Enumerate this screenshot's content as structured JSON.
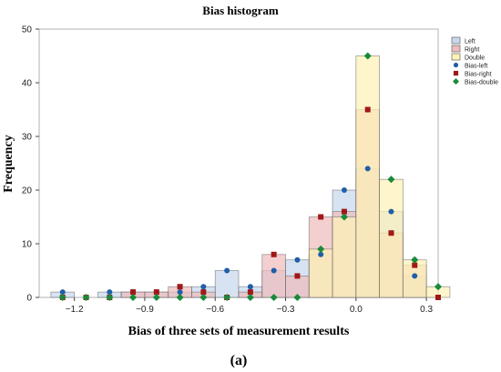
{
  "chart_data": {
    "type": "bar",
    "title": "Bias histogram",
    "xlabel": "Bias of three sets of measurement  results",
    "ylabel": "Frequency",
    "caption": "(a)",
    "bin_width": 0.1,
    "xlim": [
      -1.35,
      0.35
    ],
    "ylim": [
      0,
      50
    ],
    "x_ticks": [
      -1.2,
      -0.9,
      -0.6,
      -0.3,
      0.0,
      0.3
    ],
    "x_tick_labels": [
      "−1.2",
      "−0.9",
      "−0.6",
      "−0.3",
      "0.0",
      "0.3"
    ],
    "y_ticks": [
      0,
      10,
      20,
      30,
      40,
      50
    ],
    "y_tick_labels": [
      "0",
      "10",
      "20",
      "30",
      "40",
      "50"
    ],
    "bin_centers": [
      -1.25,
      -1.15,
      -1.05,
      -0.95,
      -0.85,
      -0.75,
      -0.65,
      -0.55,
      -0.45,
      -0.35,
      -0.25,
      -0.15,
      -0.05,
      0.05,
      0.15,
      0.25,
      0.35
    ],
    "series": [
      {
        "name": "Left",
        "kind": "hist",
        "fill": "#c8d8ee",
        "values": [
          1,
          0,
          1,
          1,
          1,
          1,
          2,
          5,
          2,
          5,
          7,
          8,
          20,
          24,
          16,
          4,
          0
        ]
      },
      {
        "name": "Right",
        "kind": "hist",
        "fill": "#eebcbc",
        "values": [
          0,
          0,
          0,
          1,
          1,
          2,
          1,
          0,
          1,
          8,
          4,
          15,
          16,
          35,
          12,
          6,
          0
        ]
      },
      {
        "name": "Double",
        "kind": "hist",
        "fill": "#fdf3b6",
        "values": [
          0,
          0,
          0,
          0,
          0,
          0,
          0,
          0,
          0,
          0,
          0,
          9,
          15,
          45,
          22,
          7,
          2
        ]
      },
      {
        "name": "Bias-left",
        "kind": "marker",
        "marker": "circle",
        "color": "#1f5fa8",
        "values": [
          1,
          0,
          1,
          1,
          1,
          1,
          2,
          5,
          2,
          5,
          7,
          8,
          20,
          24,
          16,
          4,
          0
        ]
      },
      {
        "name": "Bias-right",
        "kind": "marker",
        "marker": "square",
        "color": "#a01818",
        "values": [
          0,
          0,
          0,
          1,
          1,
          2,
          1,
          0,
          1,
          8,
          4,
          15,
          16,
          35,
          12,
          6,
          0
        ]
      },
      {
        "name": "Bias-double",
        "kind": "marker",
        "marker": "diamond",
        "color": "#1a8a3a",
        "values": [
          0,
          0,
          0,
          0,
          0,
          0,
          0,
          0,
          0,
          0,
          0,
          9,
          15,
          45,
          22,
          7,
          2
        ]
      }
    ],
    "legend_position": "top-right",
    "grid": false
  }
}
